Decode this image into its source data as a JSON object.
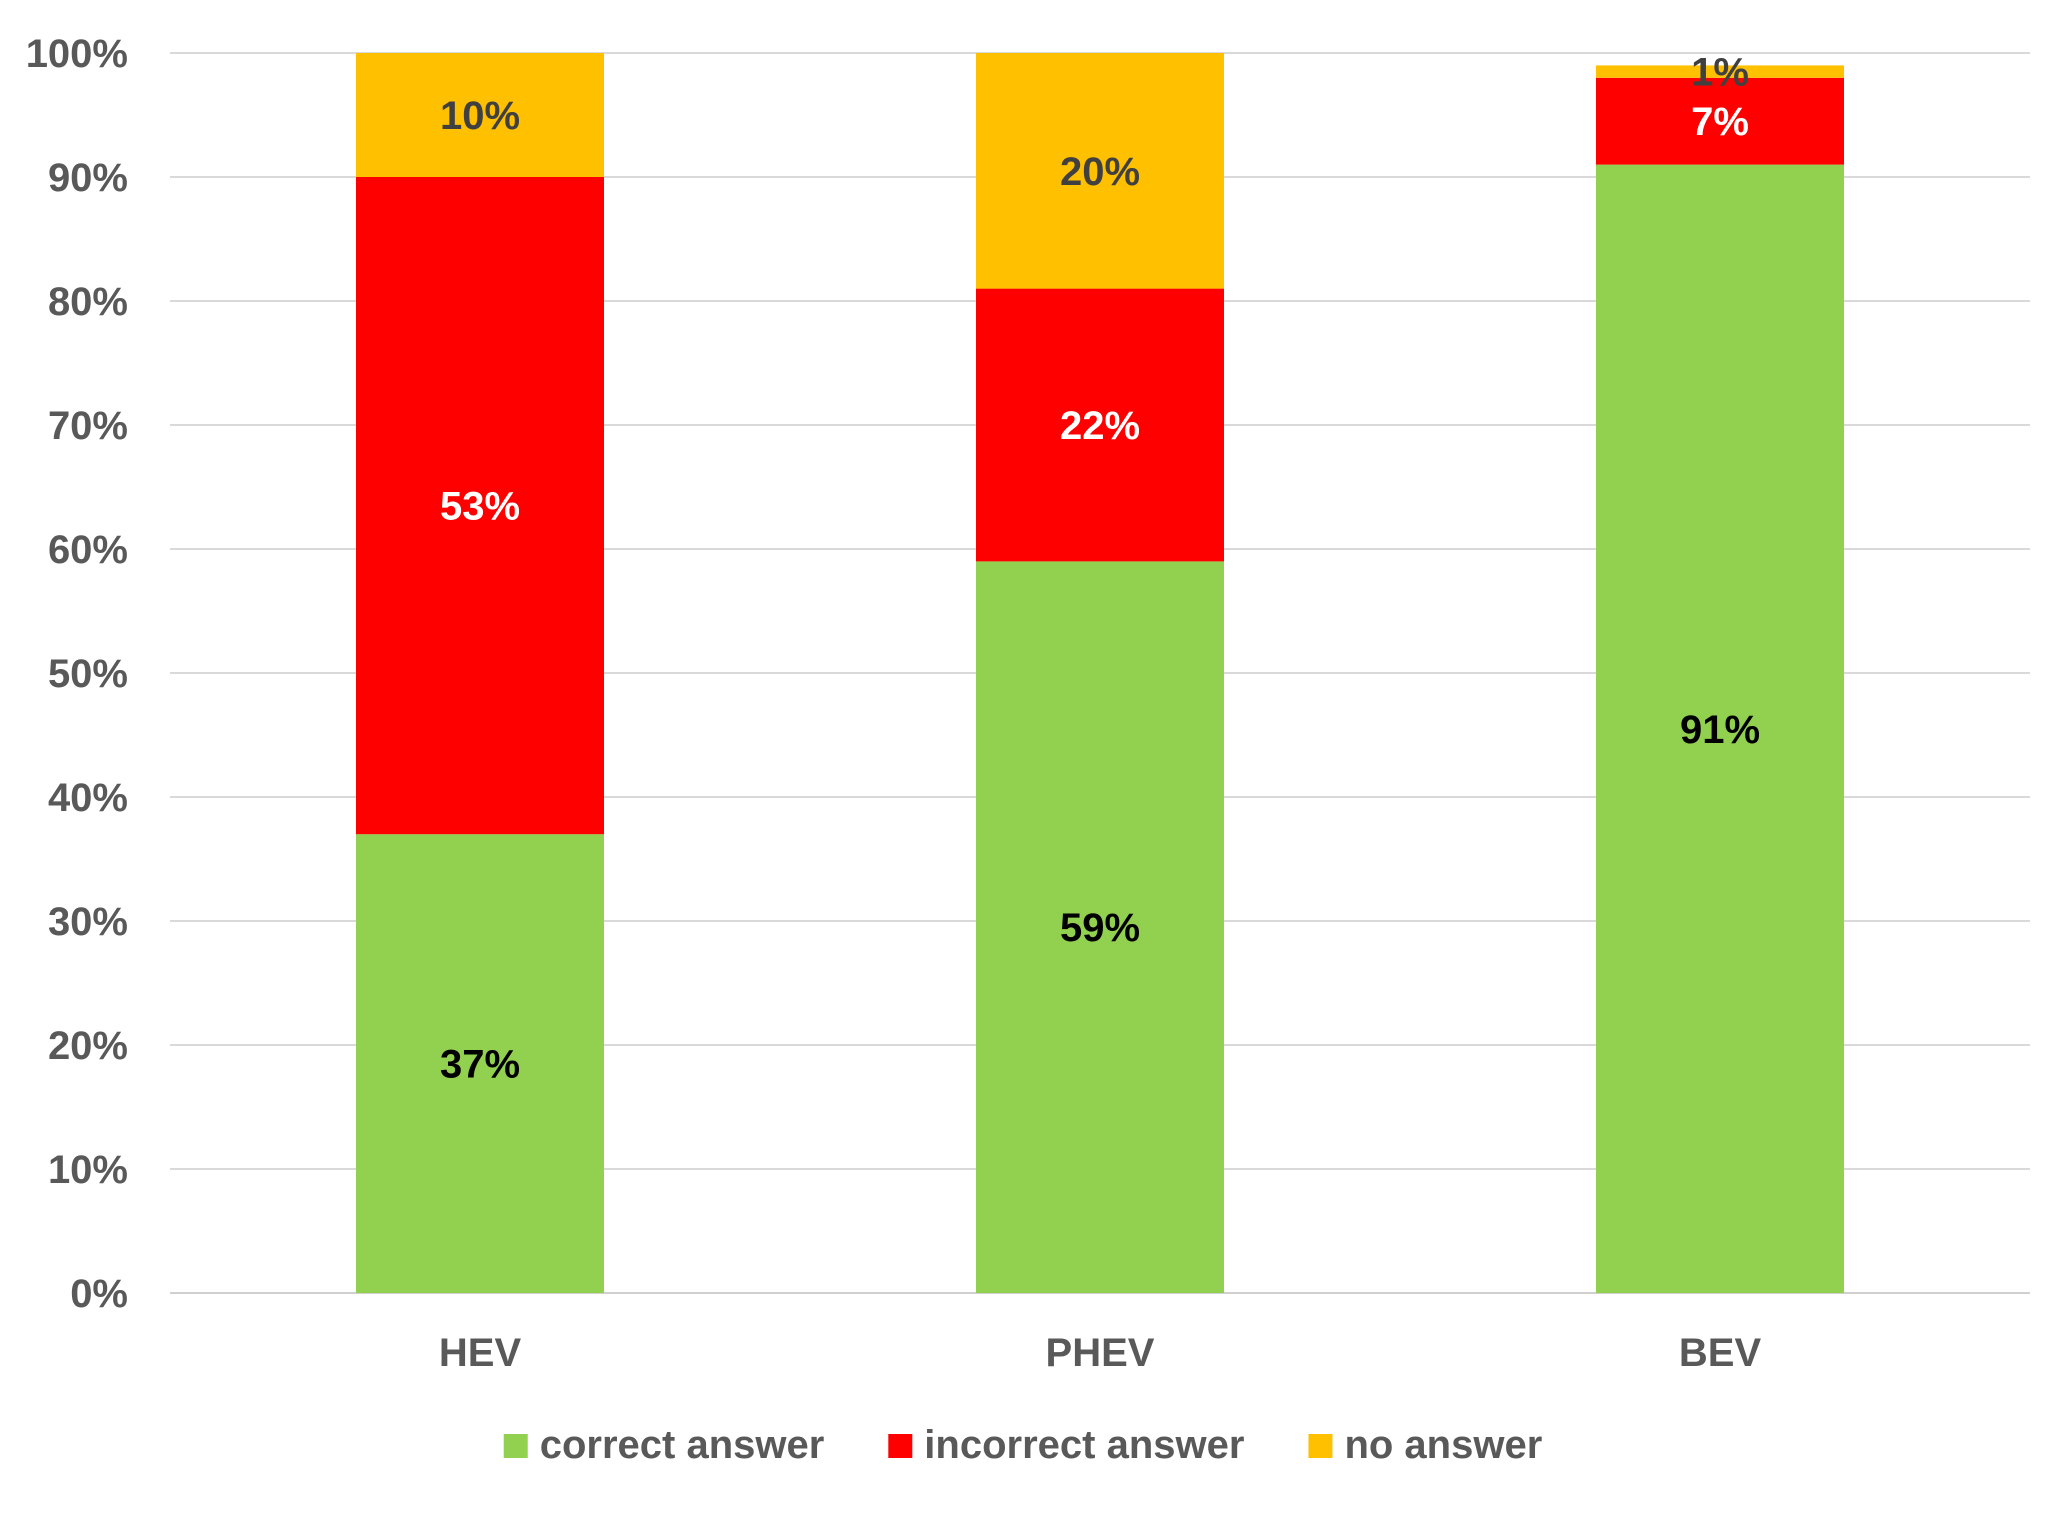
{
  "chart_data": {
    "type": "bar",
    "stacked": true,
    "title": "",
    "xlabel": "",
    "ylabel": "",
    "ylim": [
      0,
      100
    ],
    "yticks": [
      0,
      10,
      20,
      30,
      40,
      50,
      60,
      70,
      80,
      90,
      100
    ],
    "ytick_suffix": "%",
    "grid": true,
    "legend_position": "bottom",
    "categories": [
      "HEV",
      "PHEV",
      "BEV"
    ],
    "series": [
      {
        "name": "correct answer",
        "color": "#92D050",
        "label_color": "#000000",
        "values": [
          37,
          59,
          91
        ],
        "labels": [
          "37%",
          "59%",
          "91%"
        ]
      },
      {
        "name": "incorrect answer",
        "color": "#FF0000",
        "label_color": "#FFFFFF",
        "values": [
          53,
          22,
          7
        ],
        "labels": [
          "53%",
          "22%",
          "7%"
        ]
      },
      {
        "name": "no answer",
        "color": "#FFC000",
        "label_color": "#404040",
        "values": [
          10,
          20,
          1
        ],
        "labels": [
          "10%",
          "20%",
          "1%"
        ]
      }
    ]
  }
}
